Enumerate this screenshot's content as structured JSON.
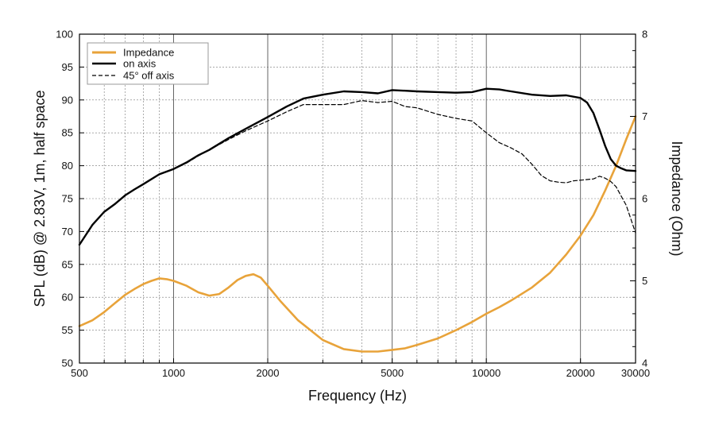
{
  "chart_data": {
    "type": "line",
    "title": "",
    "xlabel": "Frequency (Hz)",
    "ylabel_left": "SPL (dB) @ 2.83V, 1m, half space",
    "ylabel_right": "Impedance (Ohm)",
    "x_scale": "log",
    "xlim": [
      500,
      30000
    ],
    "ylim_left": [
      50,
      100
    ],
    "ylim_right": [
      4,
      8
    ],
    "grid": true,
    "legend_position": "top-left",
    "x_tick_labels": [
      "500",
      "1000",
      "2000",
      "5000",
      "10000",
      "20000",
      "30000"
    ],
    "x_tick_values": [
      500,
      1000,
      2000,
      5000,
      10000,
      20000,
      30000
    ],
    "y_left_tick_labels": [
      "50",
      "55",
      "60",
      "65",
      "70",
      "75",
      "80",
      "85",
      "90",
      "95",
      "100"
    ],
    "y_left_tick_values": [
      50,
      55,
      60,
      65,
      70,
      75,
      80,
      85,
      90,
      95,
      100
    ],
    "y_right_tick_labels": [
      "4",
      "5",
      "6",
      "7",
      "8"
    ],
    "y_right_tick_values": [
      4,
      5,
      6,
      7,
      8
    ],
    "series": [
      {
        "name": "Impedance",
        "axis": "right",
        "color": "#E8A33A",
        "style": "solid",
        "x": [
          500,
          550,
          600,
          650,
          700,
          750,
          800,
          850,
          900,
          950,
          1000,
          1100,
          1200,
          1300,
          1400,
          1500,
          1600,
          1700,
          1800,
          1900,
          2000,
          2200,
          2500,
          3000,
          3500,
          4000,
          4500,
          5000,
          5500,
          6000,
          7000,
          8000,
          9000,
          10000,
          11000,
          12000,
          14000,
          16000,
          18000,
          20000,
          22000,
          24000,
          26000,
          28000,
          30000
        ],
        "y": [
          4.45,
          4.52,
          4.62,
          4.73,
          4.83,
          4.9,
          4.96,
          5.0,
          5.03,
          5.02,
          5.0,
          4.94,
          4.86,
          4.82,
          4.84,
          4.92,
          5.01,
          5.06,
          5.08,
          5.04,
          4.94,
          4.75,
          4.52,
          4.28,
          4.17,
          4.14,
          4.14,
          4.16,
          4.18,
          4.22,
          4.3,
          4.4,
          4.5,
          4.6,
          4.68,
          4.76,
          4.92,
          5.1,
          5.32,
          5.55,
          5.8,
          6.1,
          6.4,
          6.72,
          7.0
        ]
      },
      {
        "name": "on axis",
        "axis": "left",
        "color": "#000000",
        "style": "solid",
        "x": [
          500,
          550,
          600,
          650,
          700,
          750,
          800,
          900,
          1000,
          1100,
          1200,
          1300,
          1500,
          1700,
          2000,
          2300,
          2600,
          3000,
          3500,
          4000,
          4500,
          5000,
          5500,
          6000,
          7000,
          8000,
          9000,
          10000,
          11000,
          12000,
          14000,
          16000,
          18000,
          20000,
          21000,
          22000,
          23000,
          24000,
          25000,
          26000,
          27000,
          28000,
          30000
        ],
        "y": [
          68,
          71,
          73,
          74.2,
          75.5,
          76.4,
          77.2,
          78.7,
          79.5,
          80.5,
          81.6,
          82.4,
          84.2,
          85.6,
          87.4,
          89.0,
          90.2,
          90.8,
          91.3,
          91.2,
          91.0,
          91.5,
          91.4,
          91.3,
          91.2,
          91.1,
          91.2,
          91.7,
          91.6,
          91.3,
          90.8,
          90.6,
          90.7,
          90.3,
          89.6,
          88.0,
          85.5,
          83.0,
          81.0,
          80.0,
          79.6,
          79.3,
          79.2
        ]
      },
      {
        "name": "45° off axis",
        "axis": "left",
        "color": "#000000",
        "style": "dashed",
        "x": [
          1100,
          1200,
          1300,
          1500,
          1700,
          2000,
          2300,
          2600,
          3000,
          3500,
          4000,
          4500,
          5000,
          5500,
          6000,
          7000,
          8000,
          9000,
          10000,
          11000,
          12000,
          13000,
          14000,
          15000,
          16000,
          17000,
          18000,
          19000,
          20000,
          21000,
          22000,
          23000,
          24000,
          25000,
          26000,
          28000,
          30000
        ],
        "y": [
          80.4,
          81.5,
          82.4,
          84.0,
          85.3,
          86.8,
          88.2,
          89.3,
          89.3,
          89.3,
          89.9,
          89.6,
          89.8,
          89.0,
          88.8,
          87.8,
          87.2,
          86.8,
          85.0,
          83.5,
          82.7,
          81.8,
          80.2,
          78.5,
          77.7,
          77.5,
          77.4,
          77.7,
          77.8,
          77.9,
          78.0,
          78.4,
          78.1,
          77.6,
          76.8,
          74.0,
          69.8
        ]
      }
    ]
  }
}
